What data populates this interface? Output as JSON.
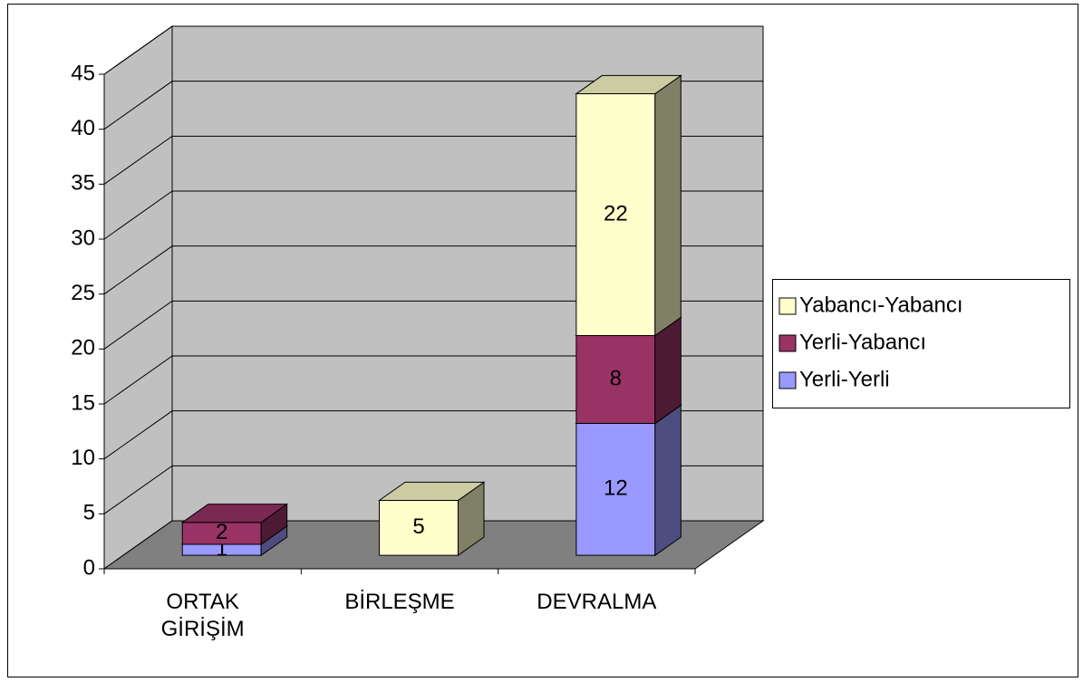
{
  "chart_data": {
    "type": "bar3d_stacked",
    "categories": [
      "ORTAK GİRİŞİM",
      "BİRLEŞME",
      "DEVRALMA"
    ],
    "series": [
      {
        "name": "Yerli-Yerli",
        "color": "#9999FF",
        "values": [
          1,
          null,
          12
        ]
      },
      {
        "name": "Yerli-Yabancı",
        "color": "#993366",
        "values": [
          2,
          null,
          8
        ]
      },
      {
        "name": "Yabancı-Yabancı",
        "color": "#FFFFCC",
        "values": [
          null,
          5,
          22
        ]
      }
    ],
    "ylim": [
      0,
      45
    ],
    "yticks": [
      0,
      5,
      10,
      15,
      20,
      25,
      30,
      35,
      40,
      45
    ],
    "grid": true,
    "legend": "right"
  }
}
